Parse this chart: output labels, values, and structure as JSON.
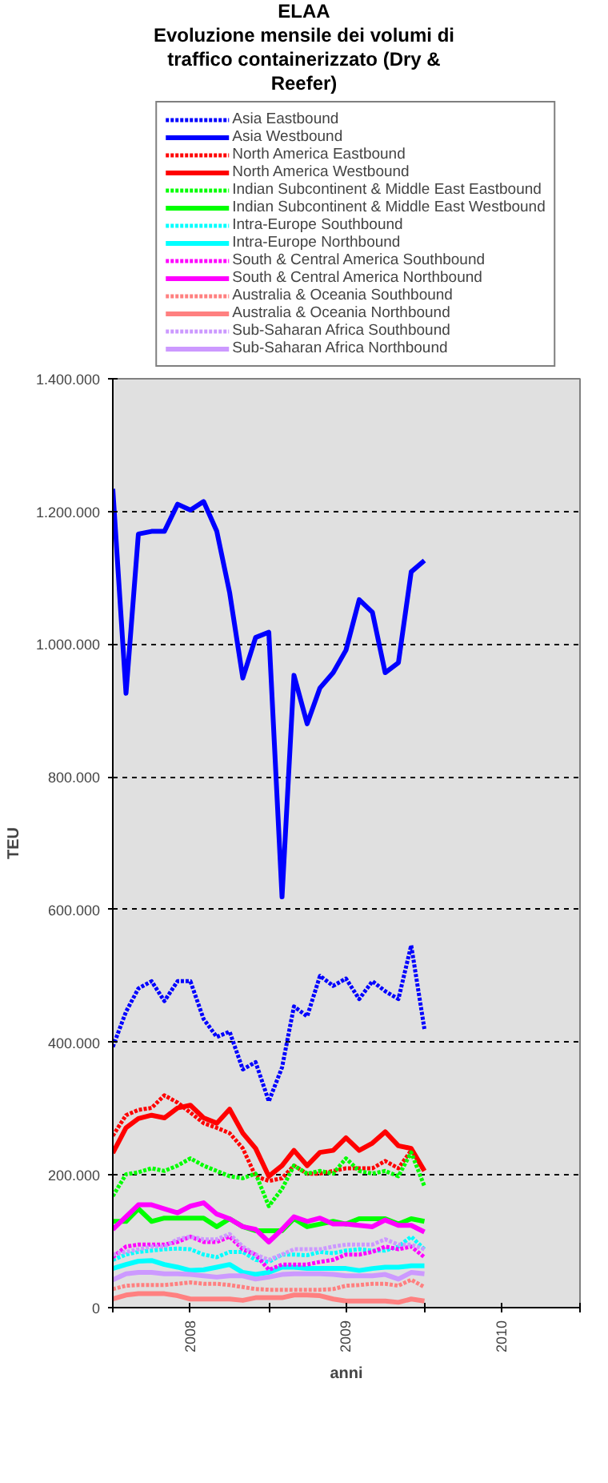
{
  "chart_data": {
    "type": "line",
    "title": "ELAA",
    "subtitle": "Evoluzione mensile dei volumi di traffico containerizzato (Dry & Reefer)",
    "xlabel": "anni",
    "ylabel": "TEU",
    "x": [
      "2008-01",
      "2008-02",
      "2008-03",
      "2008-04",
      "2008-05",
      "2008-06",
      "2008-07",
      "2008-08",
      "2008-09",
      "2008-10",
      "2008-11",
      "2008-12",
      "2009-01",
      "2009-02",
      "2009-03",
      "2009-04",
      "2009-05",
      "2009-06",
      "2009-07",
      "2009-08",
      "2009-09",
      "2009-10",
      "2009-11",
      "2009-12",
      "2010-01"
    ],
    "xlim": [
      "2008-01",
      "2011-01"
    ],
    "xticks": [
      {
        "value": "2008-01",
        "label": null
      },
      {
        "value": "2008-07",
        "label": "2008"
      },
      {
        "value": "2009-01",
        "label": null
      },
      {
        "value": "2009-07",
        "label": "2009"
      },
      {
        "value": "2010-01",
        "label": null
      },
      {
        "value": "2010-07",
        "label": "2010"
      },
      {
        "value": "2011-01",
        "label": null
      }
    ],
    "ylim": [
      0,
      1400000
    ],
    "yticks": [
      0,
      {
        "value": 200000,
        "label": "200.000"
      },
      {
        "value": 400000,
        "label": "400.000"
      },
      {
        "value": 600000,
        "label": "600.000"
      },
      {
        "value": 800000,
        "label": "800.000"
      },
      {
        "value": 1000000,
        "label": "1.000.000"
      },
      {
        "value": 1200000,
        "label": "1.200.000"
      },
      {
        "value": 1400000,
        "label": "1.400.000"
      }
    ],
    "grid": "y",
    "legend": "top",
    "series": [
      {
        "name": "Asia Eastbound",
        "color": "#0000ff",
        "line_style": "dotted",
        "values": [
          393000,
          446000,
          481000,
          492000,
          462000,
          492000,
          492000,
          435000,
          408000,
          416000,
          359000,
          370000,
          311000,
          362000,
          454000,
          439000,
          500000,
          485000,
          496000,
          465000,
          492000,
          477000,
          465000,
          546000,
          420000
        ]
      },
      {
        "name": "Asia Westbound",
        "color": "#0000ff",
        "line_style": "solid",
        "values": [
          1234000,
          926000,
          1166000,
          1170000,
          1170000,
          1211000,
          1202000,
          1215000,
          1170000,
          1078000,
          949000,
          1010000,
          1018000,
          619000,
          953000,
          880000,
          934000,
          957000,
          991000,
          1067000,
          1048000,
          957000,
          972000,
          1109000,
          1126000
        ]
      },
      {
        "name": "North America Eastbound",
        "color": "#ff0000",
        "line_style": "dotted",
        "values": [
          259000,
          290000,
          298000,
          301000,
          320000,
          309000,
          294000,
          278000,
          271000,
          263000,
          240000,
          198000,
          191000,
          195000,
          214000,
          202000,
          202000,
          206000,
          210000,
          210000,
          210000,
          221000,
          210000,
          237000,
          206000
        ]
      },
      {
        "name": "North America Westbound",
        "color": "#ff0000",
        "line_style": "solid",
        "values": [
          233000,
          271000,
          285000,
          290000,
          286000,
          301000,
          305000,
          286000,
          278000,
          299000,
          263000,
          240000,
          198000,
          214000,
          237000,
          214000,
          234000,
          237000,
          256000,
          237000,
          248000,
          265000,
          244000,
          240000,
          206000
        ]
      },
      {
        "name": "Indian Subcontinent & Middle East Eastbound",
        "color": "#00ff00",
        "line_style": "dotted",
        "values": [
          168000,
          201000,
          204000,
          210000,
          206000,
          214000,
          225000,
          214000,
          206000,
          198000,
          195000,
          202000,
          153000,
          179000,
          214000,
          202000,
          206000,
          202000,
          225000,
          206000,
          202000,
          206000,
          198000,
          234000,
          183000
        ]
      },
      {
        "name": "Indian Subcontinent & Middle East Westbound",
        "color": "#00ff00",
        "line_style": "solid",
        "values": [
          130000,
          130000,
          149000,
          130000,
          135000,
          135000,
          135000,
          135000,
          122000,
          134000,
          122000,
          116000,
          116000,
          116000,
          134000,
          122000,
          126000,
          130000,
          126000,
          134000,
          134000,
          134000,
          126000,
          134000,
          130000
        ]
      },
      {
        "name": "Intra-Europe Southbound",
        "color": "#00ffff",
        "line_style": "dotted",
        "values": [
          72000,
          80000,
          84000,
          86000,
          88000,
          89000,
          88000,
          80000,
          76000,
          84000,
          84000,
          72000,
          69000,
          80000,
          80000,
          79000,
          84000,
          82000,
          86000,
          88000,
          86000,
          86000,
          92000,
          107000,
          88000
        ]
      },
      {
        "name": "Intra-Europe Northbound",
        "color": "#00ffff",
        "line_style": "solid",
        "values": [
          59000,
          65000,
          70000,
          71000,
          65000,
          61000,
          56000,
          57000,
          61000,
          65000,
          53000,
          50000,
          53000,
          61000,
          61000,
          59000,
          59000,
          59000,
          59000,
          56000,
          59000,
          61000,
          61000,
          63000,
          63000
        ]
      },
      {
        "name": "South & Central America Southbound",
        "color": "#ff00ff",
        "line_style": "dotted",
        "values": [
          76000,
          92000,
          95000,
          95000,
          95000,
          99000,
          107000,
          99000,
          99000,
          107000,
          88000,
          80000,
          57000,
          65000,
          65000,
          65000,
          69000,
          72000,
          80000,
          80000,
          84000,
          92000,
          88000,
          92000,
          76000
        ]
      },
      {
        "name": "South & Central America Northbound",
        "color": "#ff00ff",
        "line_style": "solid",
        "values": [
          118000,
          137000,
          155000,
          155000,
          149000,
          143000,
          153000,
          158000,
          141000,
          134000,
          122000,
          118000,
          99000,
          118000,
          137000,
          130000,
          135000,
          126000,
          126000,
          124000,
          122000,
          132000,
          124000,
          124000,
          114000
        ]
      },
      {
        "name": "Australia & Oceania Southbound",
        "color": "#ff8080",
        "line_style": "dotted",
        "values": [
          28000,
          33000,
          34000,
          34000,
          34000,
          36000,
          38000,
          36000,
          36000,
          34000,
          31000,
          28000,
          27000,
          27000,
          27000,
          27000,
          27000,
          28000,
          33000,
          34000,
          36000,
          36000,
          33000,
          42000,
          31000
        ]
      },
      {
        "name": "Australia & Oceania Northbound",
        "color": "#ff8080",
        "line_style": "solid",
        "values": [
          13000,
          19000,
          21000,
          21000,
          21000,
          18000,
          13000,
          13000,
          13000,
          13000,
          11000,
          15000,
          15000,
          15000,
          19000,
          19000,
          18000,
          13000,
          10000,
          10000,
          10000,
          10000,
          8000,
          13000,
          10000
        ]
      },
      {
        "name": "Sub-Saharan Africa Southbound",
        "color": "#cc99ff",
        "line_style": "dotted",
        "values": [
          80000,
          84000,
          88000,
          92000,
          92000,
          103000,
          107000,
          103000,
          103000,
          111000,
          92000,
          80000,
          72000,
          80000,
          88000,
          88000,
          88000,
          92000,
          95000,
          95000,
          95000,
          103000,
          95000,
          95000,
          88000
        ]
      },
      {
        "name": "Sub-Saharan Africa Northbound",
        "color": "#cc99ff",
        "line_style": "solid",
        "values": [
          42000,
          51000,
          53000,
          53000,
          51000,
          51000,
          50000,
          48000,
          46000,
          48000,
          48000,
          43000,
          46000,
          50000,
          51000,
          51000,
          51000,
          50000,
          48000,
          48000,
          48000,
          50000,
          43000,
          53000,
          51000
        ]
      }
    ]
  }
}
